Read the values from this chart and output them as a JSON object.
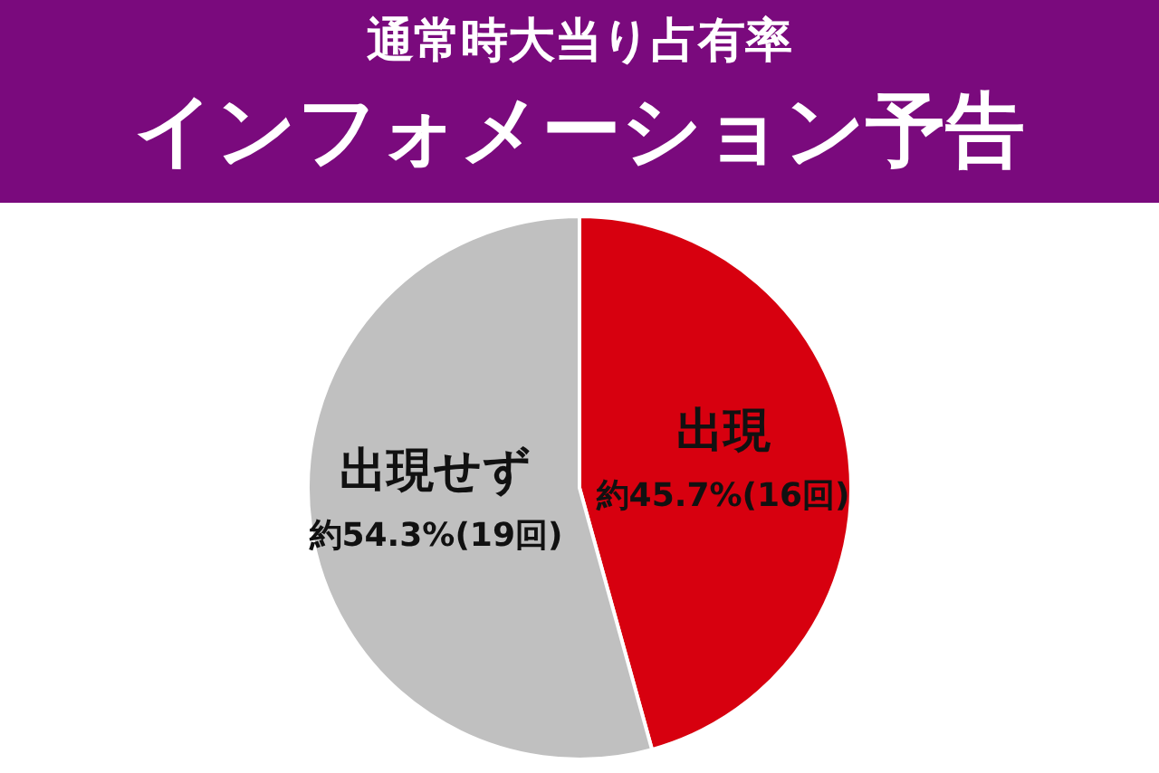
{
  "chart_data": {
    "type": "pie",
    "title": "通常時大当り占有率",
    "subtitle": "インフォメーション予告",
    "categories": [
      "出現",
      "出現せず"
    ],
    "values": [
      45.7,
      54.3
    ],
    "colors": [
      "#d7000f",
      "#c0c0c0"
    ],
    "value_labels": [
      "約45.7%(16回)",
      "約54.3%(19回)"
    ]
  }
}
